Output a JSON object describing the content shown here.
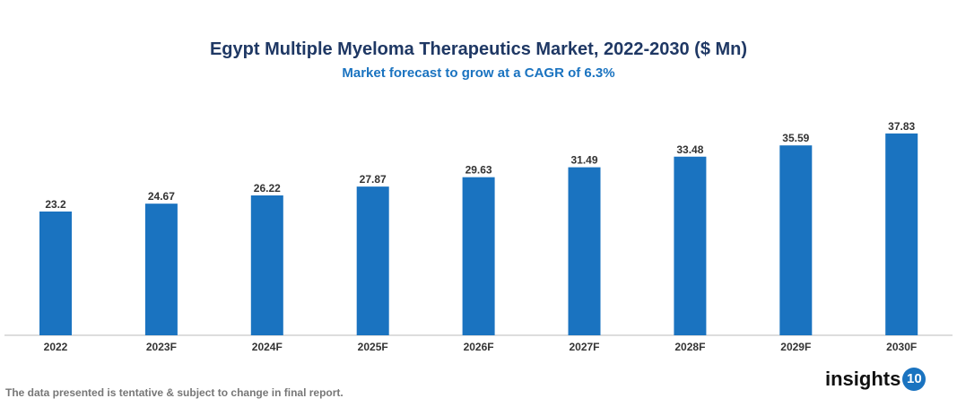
{
  "chart_data": {
    "type": "bar",
    "title": "Egypt Multiple Myeloma Therapeutics Market, 2022-2030 ($ Mn)",
    "subtitle": "Market forecast to grow at a CAGR of 6.3%",
    "categories": [
      "2022",
      "2023F",
      "2024F",
      "2025F",
      "2026F",
      "2027F",
      "2028F",
      "2029F",
      "2030F"
    ],
    "values": [
      23.2,
      24.67,
      26.22,
      27.87,
      29.63,
      31.49,
      33.48,
      35.59,
      37.83
    ],
    "xlabel": "",
    "ylabel": "",
    "ylim": [
      0,
      41
    ],
    "grid": false,
    "bar_color": "#1a73c0"
  },
  "footer": {
    "note": "The data presented is tentative & subject to change in final report.",
    "logo_text": "insights",
    "logo_num": "10"
  }
}
